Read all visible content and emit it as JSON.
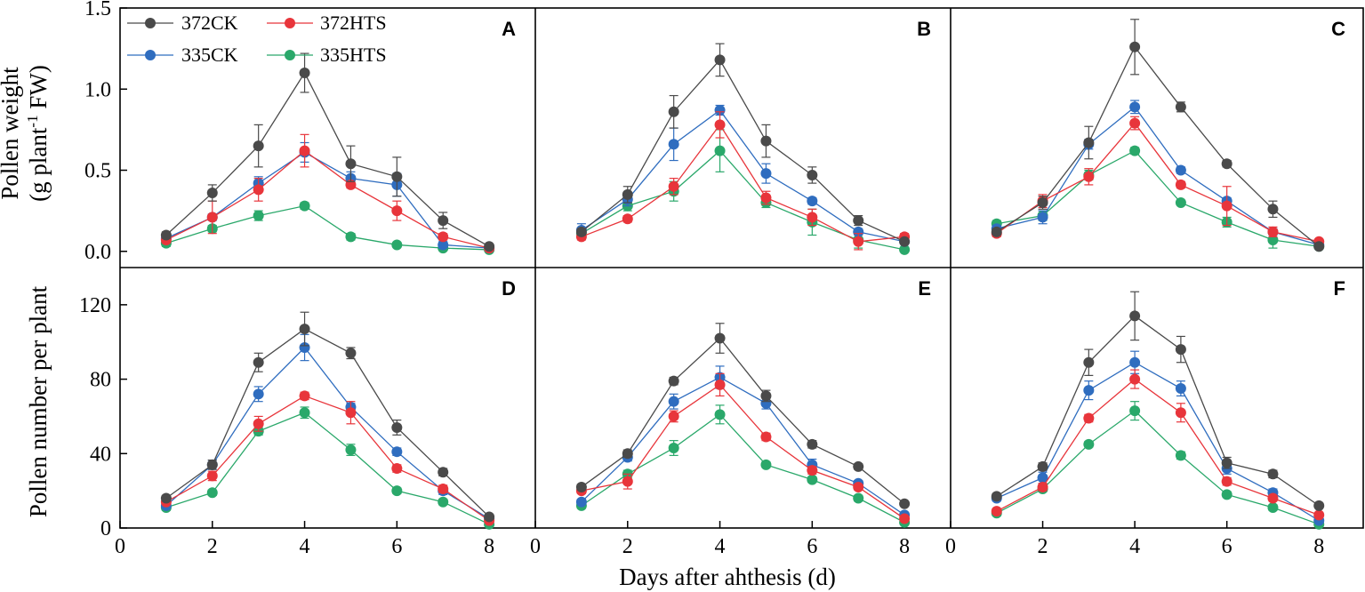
{
  "figure": {
    "ylabel_top_line1": "Pollen weight",
    "ylabel_top_line2_pre": "(g plant",
    "ylabel_top_line2_sup": "-1",
    "ylabel_top_line2_post": " FW)",
    "ylabel_bottom": "Pollen number per plant",
    "xlabel": "Days after ahthesis (d)",
    "colors": {
      "372CK": "#4a4a4a",
      "372HTS": "#e8353b",
      "335CK": "#2f6dbf",
      "335HTS": "#2aa86a"
    },
    "legend": [
      {
        "name": "372CK"
      },
      {
        "name": "372HTS"
      },
      {
        "name": "335CK"
      },
      {
        "name": "335HTS"
      }
    ]
  },
  "chart_data": [
    {
      "panel": "A",
      "type": "line",
      "x": [
        1,
        2,
        3,
        4,
        5,
        6,
        7,
        8
      ],
      "xlim": [
        0,
        9
      ],
      "ylim": [
        -0.1,
        1.5
      ],
      "yticks": [
        "0.0",
        "0.5",
        "1.0",
        "1.5"
      ],
      "ytick_values": [
        0,
        0.5,
        1.0,
        1.5
      ],
      "xticks": [
        "0",
        "2",
        "4",
        "6",
        "8"
      ],
      "xtick_values": [
        0,
        2,
        4,
        6,
        8
      ],
      "series": [
        {
          "name": "372CK",
          "values": [
            0.1,
            0.36,
            0.65,
            1.1,
            0.54,
            0.46,
            0.19,
            0.03
          ],
          "err": [
            0.02,
            0.05,
            0.13,
            0.12,
            0.11,
            0.12,
            0.05,
            0.01
          ]
        },
        {
          "name": "372HTS",
          "values": [
            0.07,
            0.21,
            0.38,
            0.62,
            0.41,
            0.25,
            0.09,
            0.02
          ],
          "err": [
            0.02,
            0.1,
            0.07,
            0.1,
            0.02,
            0.06,
            0.02,
            0.01
          ]
        },
        {
          "name": "335CK",
          "values": [
            0.08,
            0.21,
            0.42,
            0.61,
            0.45,
            0.41,
            0.04,
            0.02
          ],
          "err": [
            0.02,
            0.02,
            0.04,
            0.06,
            0.04,
            0.07,
            0.02,
            0.01
          ]
        },
        {
          "name": "335HTS",
          "values": [
            0.05,
            0.14,
            0.22,
            0.28,
            0.09,
            0.04,
            0.02,
            0.01
          ],
          "err": [
            0.02,
            0.02,
            0.03,
            0.02,
            0.02,
            0.01,
            0.01,
            0.01
          ]
        }
      ]
    },
    {
      "panel": "B",
      "type": "line",
      "x": [
        1,
        2,
        3,
        4,
        5,
        6,
        7,
        8
      ],
      "xlim": [
        0,
        9
      ],
      "ylim": [
        -0.1,
        1.5
      ],
      "yticks": [],
      "ytick_values": [],
      "xticks": [
        "0",
        "2",
        "4",
        "6",
        "8"
      ],
      "xtick_values": [
        0,
        2,
        4,
        6,
        8
      ],
      "series": [
        {
          "name": "372CK",
          "values": [
            0.12,
            0.35,
            0.86,
            1.18,
            0.68,
            0.47,
            0.19,
            0.06
          ],
          "err": [
            0.02,
            0.05,
            0.1,
            0.1,
            0.1,
            0.05,
            0.03,
            0.01
          ]
        },
        {
          "name": "372HTS",
          "values": [
            0.09,
            0.2,
            0.4,
            0.78,
            0.33,
            0.21,
            0.06,
            0.09
          ],
          "err": [
            0.02,
            0.02,
            0.05,
            0.08,
            0.04,
            0.05,
            0.05,
            0.02
          ]
        },
        {
          "name": "335CK",
          "values": [
            0.13,
            0.32,
            0.66,
            0.87,
            0.48,
            0.31,
            0.12,
            0.06
          ],
          "err": [
            0.04,
            0.04,
            0.1,
            0.03,
            0.06,
            0.02,
            0.02,
            0.01
          ]
        },
        {
          "name": "335HTS",
          "values": [
            0.11,
            0.28,
            0.37,
            0.62,
            0.3,
            0.18,
            0.07,
            0.01
          ],
          "err": [
            0.02,
            0.03,
            0.06,
            0.13,
            0.03,
            0.08,
            0.05,
            0.01
          ]
        }
      ]
    },
    {
      "panel": "C",
      "type": "line",
      "x": [
        1,
        2,
        3,
        4,
        5,
        6,
        7,
        8
      ],
      "xlim": [
        0,
        9
      ],
      "ylim": [
        -0.1,
        1.5
      ],
      "yticks": [],
      "ytick_values": [],
      "xticks": [
        "0",
        "2",
        "4",
        "6",
        "8"
      ],
      "xtick_values": [
        0,
        2,
        4,
        6,
        8
      ],
      "series": [
        {
          "name": "372CK",
          "values": [
            0.12,
            0.3,
            0.67,
            1.26,
            0.89,
            0.54,
            0.26,
            0.03
          ],
          "err": [
            0.02,
            0.04,
            0.1,
            0.17,
            0.03,
            0.02,
            0.05,
            0.01
          ]
        },
        {
          "name": "372HTS",
          "values": [
            0.11,
            0.31,
            0.46,
            0.79,
            0.41,
            0.28,
            0.12,
            0.06
          ],
          "err": [
            0.02,
            0.04,
            0.05,
            0.04,
            0.02,
            0.12,
            0.03,
            0.01
          ]
        },
        {
          "name": "335CK",
          "values": [
            0.14,
            0.21,
            0.66,
            0.89,
            0.5,
            0.31,
            0.12,
            0.04
          ],
          "err": [
            0.02,
            0.04,
            0.03,
            0.04,
            0.02,
            0.02,
            0.02,
            0.01
          ]
        },
        {
          "name": "335HTS",
          "values": [
            0.17,
            0.22,
            0.47,
            0.62,
            0.3,
            0.18,
            0.07,
            0.03
          ],
          "err": [
            0.02,
            0.03,
            0.03,
            0.02,
            0.01,
            0.03,
            0.05,
            0.01
          ]
        }
      ]
    },
    {
      "panel": "D",
      "type": "line",
      "x": [
        1,
        2,
        3,
        4,
        5,
        6,
        7,
        8
      ],
      "xlim": [
        0,
        9
      ],
      "ylim": [
        0,
        140
      ],
      "yticks": [
        "0",
        "40",
        "80",
        "120"
      ],
      "ytick_values": [
        0,
        40,
        80,
        120
      ],
      "xticks": [
        "0",
        "2",
        "4",
        "6",
        "8"
      ],
      "xtick_values": [
        0,
        2,
        4,
        6,
        8
      ],
      "series": [
        {
          "name": "372CK",
          "values": [
            16,
            34,
            89,
            107,
            94,
            54,
            30,
            6
          ],
          "err": [
            1.5,
            2.5,
            5,
            9,
            3,
            4,
            2,
            1
          ]
        },
        {
          "name": "372HTS",
          "values": [
            14,
            28,
            56,
            71,
            62,
            32,
            21,
            4
          ],
          "err": [
            1.5,
            2.5,
            4,
            2,
            6,
            2,
            2,
            1
          ]
        },
        {
          "name": "335CK",
          "values": [
            12,
            34,
            72,
            97,
            65,
            41,
            20,
            5
          ],
          "err": [
            1.5,
            2.5,
            4,
            7,
            2,
            2,
            2,
            1
          ]
        },
        {
          "name": "335HTS",
          "values": [
            11,
            19,
            52,
            62,
            42,
            20,
            14,
            2
          ],
          "err": [
            1.5,
            1.5,
            2,
            3,
            3,
            1.5,
            1.5,
            1
          ]
        }
      ]
    },
    {
      "panel": "E",
      "type": "line",
      "x": [
        1,
        2,
        3,
        4,
        5,
        6,
        7,
        8
      ],
      "xlim": [
        0,
        9
      ],
      "ylim": [
        0,
        140
      ],
      "yticks": [],
      "ytick_values": [],
      "xticks": [
        "0",
        "2",
        "4",
        "6",
        "8"
      ],
      "xtick_values": [
        0,
        2,
        4,
        6,
        8
      ],
      "series": [
        {
          "name": "372CK",
          "values": [
            22,
            40,
            79,
            102,
            71,
            45,
            33,
            13
          ],
          "err": [
            1.5,
            2,
            2,
            8,
            3,
            2,
            1.5,
            1
          ]
        },
        {
          "name": "372HTS",
          "values": [
            20,
            25,
            60,
            77,
            49,
            31,
            22,
            5
          ],
          "err": [
            1.5,
            4,
            3,
            6,
            2,
            2,
            1.5,
            1
          ]
        },
        {
          "name": "335CK",
          "values": [
            14,
            38,
            68,
            81,
            67,
            34,
            24,
            7
          ],
          "err": [
            1.5,
            2,
            4,
            6,
            3,
            3,
            1.5,
            1
          ]
        },
        {
          "name": "335HTS",
          "values": [
            12,
            29,
            43,
            61,
            34,
            26,
            16,
            3
          ],
          "err": [
            1.5,
            2,
            4,
            5,
            1.5,
            1.5,
            1.5,
            1
          ]
        }
      ]
    },
    {
      "panel": "F",
      "type": "line",
      "x": [
        1,
        2,
        3,
        4,
        5,
        6,
        7,
        8
      ],
      "xlim": [
        0,
        9
      ],
      "ylim": [
        0,
        140
      ],
      "yticks": [],
      "ytick_values": [],
      "xticks": [
        "0",
        "2",
        "4",
        "6",
        "8"
      ],
      "xtick_values": [
        0,
        2,
        4,
        6,
        8
      ],
      "series": [
        {
          "name": "372CK",
          "values": [
            17,
            33,
            89,
            114,
            96,
            35,
            29,
            12
          ],
          "err": [
            1.5,
            2,
            7,
            13,
            7,
            3,
            2,
            1
          ]
        },
        {
          "name": "372HTS",
          "values": [
            9,
            22,
            59,
            80,
            62,
            25,
            16,
            7
          ],
          "err": [
            1.5,
            2,
            2,
            5,
            5,
            2,
            1.5,
            1
          ]
        },
        {
          "name": "335CK",
          "values": [
            16,
            27,
            74,
            89,
            75,
            32,
            19,
            4
          ],
          "err": [
            1.5,
            3,
            5,
            6,
            4,
            3,
            2,
            1
          ]
        },
        {
          "name": "335HTS",
          "values": [
            8,
            21,
            45,
            63,
            39,
            18,
            11,
            2
          ],
          "err": [
            1.5,
            1.5,
            1.5,
            5,
            2,
            1.5,
            1.5,
            1
          ]
        }
      ]
    }
  ]
}
